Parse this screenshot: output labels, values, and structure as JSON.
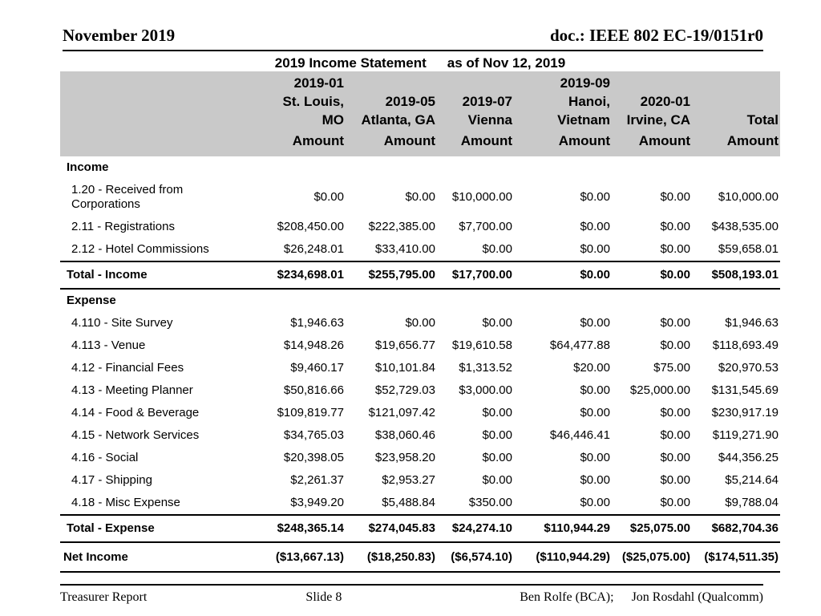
{
  "colors": {
    "table_header_bg": "#c9c9c9"
  },
  "header": {
    "date": "November 2019",
    "doc": "doc.: IEEE 802 EC-19/0151r0"
  },
  "title": {
    "main": "2019 Income Statement",
    "asof": "as of Nov 12, 2019"
  },
  "table": {
    "amount_label": "Amount",
    "columns": [
      {
        "id": "2019-01-st-louis-mo",
        "lines": [
          "2019-01",
          "St. Louis,",
          "MO"
        ]
      },
      {
        "id": "2019-05-atlanta-ga",
        "lines": [
          "2019-05",
          "Atlanta, GA"
        ]
      },
      {
        "id": "2019-07-vienna",
        "lines": [
          "2019-07",
          "Vienna"
        ]
      },
      {
        "id": "2019-09-hanoi-vietnam",
        "lines": [
          "2019-09",
          "Hanoi,",
          "Vietnam"
        ]
      },
      {
        "id": "2020-01-irvine-ca",
        "lines": [
          "2020-01",
          "Irvine, CA"
        ]
      },
      {
        "id": "total",
        "lines": [
          "Total"
        ]
      }
    ],
    "rows": [
      {
        "type": "section",
        "label": "Income",
        "values": []
      },
      {
        "type": "data",
        "label": "1.20 - Received from\nCorporations",
        "values": [
          "$0.00",
          "$0.00",
          "$10,000.00",
          "$0.00",
          "$0.00",
          "$10,000.00"
        ]
      },
      {
        "type": "data",
        "label": "2.11 - Registrations",
        "values": [
          "$208,450.00",
          "$222,385.00",
          "$7,700.00",
          "$0.00",
          "$0.00",
          "$438,535.00"
        ]
      },
      {
        "type": "data",
        "label": "2.12 - Hotel Commissions",
        "values": [
          "$26,248.01",
          "$33,410.00",
          "$0.00",
          "$0.00",
          "$0.00",
          "$59,658.01"
        ]
      },
      {
        "type": "total",
        "label": "Total - Income",
        "values": [
          "$234,698.01",
          "$255,795.00",
          "$17,700.00",
          "$0.00",
          "$0.00",
          "$508,193.01"
        ]
      },
      {
        "type": "section",
        "label": "Expense",
        "values": []
      },
      {
        "type": "data",
        "label": "4.110 - Site Survey",
        "values": [
          "$1,946.63",
          "$0.00",
          "$0.00",
          "$0.00",
          "$0.00",
          "$1,946.63"
        ]
      },
      {
        "type": "data",
        "label": "4.113 - Venue",
        "values": [
          "$14,948.26",
          "$19,656.77",
          "$19,610.58",
          "$64,477.88",
          "$0.00",
          "$118,693.49"
        ]
      },
      {
        "type": "data",
        "label": "4.12 - Financial Fees",
        "values": [
          "$9,460.17",
          "$10,101.84",
          "$1,313.52",
          "$20.00",
          "$75.00",
          "$20,970.53"
        ]
      },
      {
        "type": "data",
        "label": "4.13 - Meeting  Planner",
        "values": [
          "$50,816.66",
          "$52,729.03",
          "$3,000.00",
          "$0.00",
          "$25,000.00",
          "$131,545.69"
        ]
      },
      {
        "type": "data",
        "label": "4.14 - Food & Beverage",
        "values": [
          "$109,819.77",
          "$121,097.42",
          "$0.00",
          "$0.00",
          "$0.00",
          "$230,917.19"
        ]
      },
      {
        "type": "data",
        "label": "4.15 - Network Services",
        "values": [
          "$34,765.03",
          "$38,060.46",
          "$0.00",
          "$46,446.41",
          "$0.00",
          "$119,271.90"
        ]
      },
      {
        "type": "data",
        "label": "4.16 - Social",
        "values": [
          "$20,398.05",
          "$23,958.20",
          "$0.00",
          "$0.00",
          "$0.00",
          "$44,356.25"
        ]
      },
      {
        "type": "data",
        "label": "4.17 - Shipping",
        "values": [
          "$2,261.37",
          "$2,953.27",
          "$0.00",
          "$0.00",
          "$0.00",
          "$5,214.64"
        ]
      },
      {
        "type": "data",
        "label": "4.18 - Misc Expense",
        "values": [
          "$3,949.20",
          "$5,488.84",
          "$350.00",
          "$0.00",
          "$0.00",
          "$9,788.04"
        ]
      },
      {
        "type": "total",
        "label": "Total - Expense",
        "values": [
          "$248,365.14",
          "$274,045.83",
          "$24,274.10",
          "$110,944.29",
          "$25,075.00",
          "$682,704.36"
        ]
      },
      {
        "type": "net",
        "label": "Net Income",
        "values": [
          "($13,667.13)",
          "($18,250.83)",
          "($6,574.10)",
          "($110,944.29)",
          "($25,075.00)",
          "($174,511.35)"
        ]
      }
    ]
  },
  "footer": {
    "left": "Treasurer Report",
    "center": "Slide 8",
    "right_a": "Ben Rolfe (BCA);",
    "right_b": "Jon Rosdahl (Qualcomm)"
  }
}
